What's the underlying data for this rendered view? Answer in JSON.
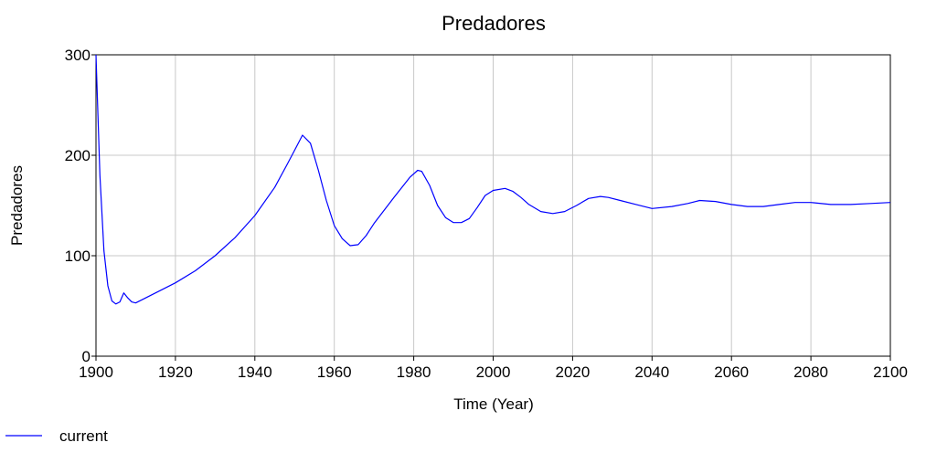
{
  "chart_data": {
    "type": "line",
    "title": "Predadores",
    "xlabel": "Time (Year)",
    "ylabel": "Predadores",
    "xlim": [
      1900,
      2100
    ],
    "ylim": [
      0,
      300
    ],
    "x_ticks": [
      "1900",
      "1920",
      "1940",
      "1960",
      "1980",
      "2000",
      "2020",
      "2040",
      "2060",
      "2080",
      "2100"
    ],
    "y_ticks": [
      "0",
      "100",
      "200",
      "300"
    ],
    "grid": true,
    "legend_position": "bottom-left",
    "series": [
      {
        "name": "current",
        "color": "#0000ff",
        "x": [
          1900,
          1901,
          1902,
          1903,
          1904,
          1905,
          1906,
          1907,
          1908,
          1909,
          1910,
          1912,
          1915,
          1920,
          1925,
          1930,
          1935,
          1940,
          1945,
          1948,
          1950,
          1952,
          1954,
          1956,
          1958,
          1960,
          1962,
          1964,
          1966,
          1968,
          1970,
          1975,
          1979,
          1981,
          1982,
          1984,
          1986,
          1988,
          1990,
          1992,
          1994,
          1996,
          1998,
          2000,
          2003,
          2005,
          2007,
          2009,
          2012,
          2015,
          2018,
          2021,
          2024,
          2027,
          2029,
          2032,
          2036,
          2040,
          2045,
          2049,
          2052,
          2056,
          2060,
          2064,
          2068,
          2072,
          2076,
          2080,
          2085,
          2090,
          2095,
          2100
        ],
        "y": [
          300,
          180,
          105,
          70,
          55,
          52,
          54,
          63,
          58,
          54,
          53,
          57,
          63,
          73,
          85,
          100,
          118,
          140,
          168,
          190,
          205,
          220,
          212,
          185,
          155,
          130,
          117,
          110,
          111,
          120,
          132,
          158,
          178,
          185,
          184,
          170,
          150,
          138,
          133,
          133,
          137,
          148,
          160,
          165,
          167,
          164,
          158,
          151,
          144,
          142,
          144,
          150,
          157,
          159,
          158,
          155,
          151,
          147,
          149,
          152,
          155,
          154,
          151,
          149,
          149,
          151,
          153,
          153,
          151,
          151,
          152,
          153
        ]
      }
    ]
  }
}
